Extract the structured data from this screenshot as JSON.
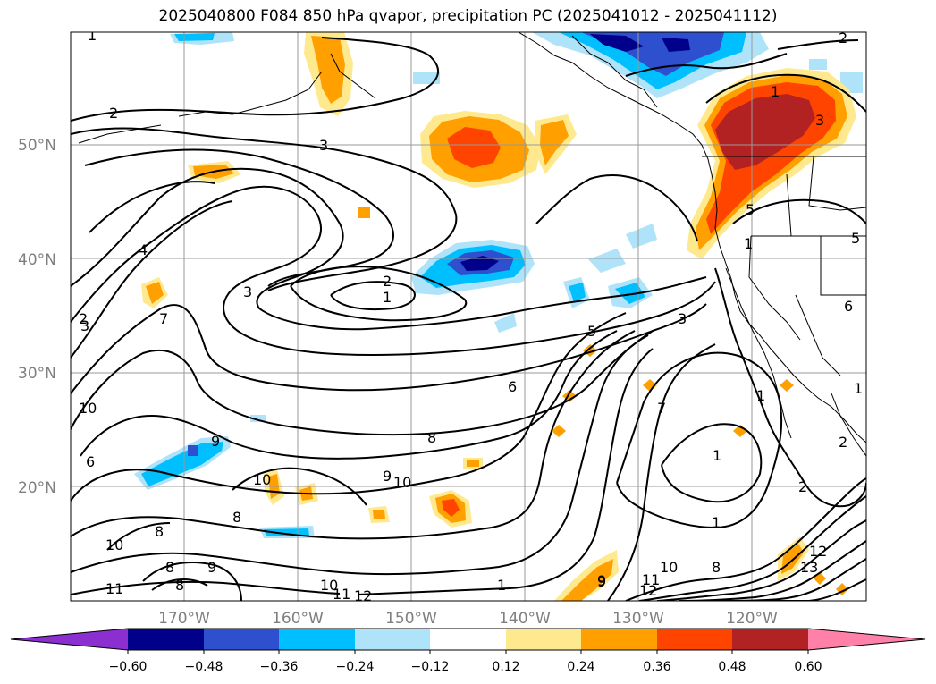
{
  "title": "2025040800 F084 850 hPa qvapor, precipitation PC (2025041012 - 2025041112)",
  "map": {
    "lat_labels": [
      "50°N",
      "40°N",
      "30°N",
      "20°N"
    ],
    "lon_labels": [
      "170°W",
      "160°W",
      "150°W",
      "140°W",
      "130°W",
      "120°W"
    ],
    "contour_labels": [
      "1",
      "2",
      "3",
      "3",
      "2",
      "1",
      "2",
      "3",
      "1",
      "5",
      "6",
      "5",
      "3",
      "4",
      "3",
      "2",
      "10",
      "6",
      "9",
      "8",
      "7",
      "8",
      "9",
      "10",
      "8",
      "9",
      "8",
      "8",
      "10",
      "11",
      "10",
      "11",
      "12",
      "1",
      "9",
      "11",
      "10",
      "12",
      "13",
      "12",
      "8",
      "1",
      "2",
      "2",
      "1",
      "7",
      "1",
      "6",
      "1",
      "5",
      "9",
      "10",
      "1"
    ]
  },
  "colorbar": {
    "colors": [
      "#8b2fd0",
      "#00008b",
      "#2e4fce",
      "#00bfff",
      "#afe3fa",
      "#ffffff",
      "#ffe98f",
      "#ff9f00",
      "#ff4400",
      "#b22222",
      "#ff80a8"
    ],
    "tick_labels": [
      "−0.60",
      "−0.48",
      "−0.36",
      "−0.24",
      "−0.12",
      "0.12",
      "0.24",
      "0.36",
      "0.48",
      "0.60"
    ]
  }
}
